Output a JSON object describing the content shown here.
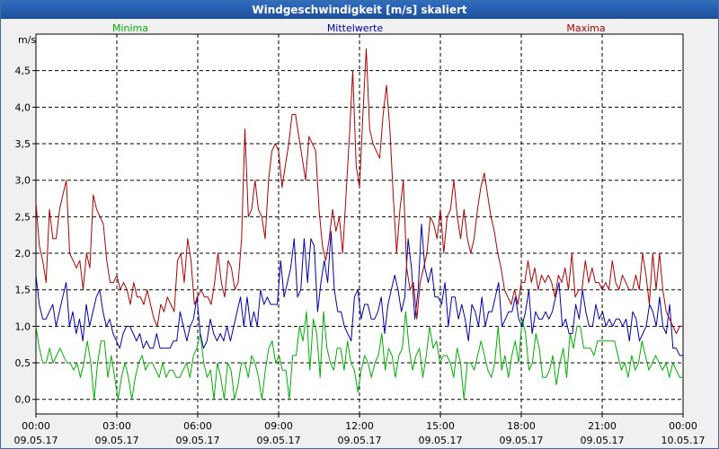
{
  "window": {
    "title": "Windgeschwindigkeit [m/s] skaliert"
  },
  "chart_data": {
    "type": "line",
    "title": "Windgeschwindigkeit [m/s] skaliert",
    "ylabel": "m/s",
    "ylim": [
      -0.2,
      5.0
    ],
    "xlim": [
      0,
      24
    ],
    "grid": true,
    "y_ticks": [
      {
        "value": 0.0,
        "label": "0,0"
      },
      {
        "value": 0.5,
        "label": "0,5"
      },
      {
        "value": 1.0,
        "label": "1,0"
      },
      {
        "value": 1.5,
        "label": "1,5"
      },
      {
        "value": 2.0,
        "label": "2,0"
      },
      {
        "value": 2.5,
        "label": "2,5"
      },
      {
        "value": 3.0,
        "label": "3,0"
      },
      {
        "value": 3.5,
        "label": "3,5"
      },
      {
        "value": 4.0,
        "label": "4,0"
      },
      {
        "value": 4.5,
        "label": "4,5"
      }
    ],
    "x_ticks": [
      {
        "value": 0,
        "time": "00:00",
        "date": "09.05.17"
      },
      {
        "value": 3,
        "time": "03:00",
        "date": "09.05.17"
      },
      {
        "value": 6,
        "time": "06:00",
        "date": "09.05.17"
      },
      {
        "value": 9,
        "time": "09:00",
        "date": "09.05.17"
      },
      {
        "value": 12,
        "time": "12:00",
        "date": "09.05.17"
      },
      {
        "value": 15,
        "time": "15:00",
        "date": "09.05.17"
      },
      {
        "value": 18,
        "time": "18:00",
        "date": "09.05.17"
      },
      {
        "value": 21,
        "time": "21:00",
        "date": "09.05.17"
      },
      {
        "value": 24,
        "time": "00:00",
        "date": "10.05.17"
      }
    ],
    "series": [
      {
        "name": "Minima",
        "color": "#00b000",
        "values": [
          1.0,
          0.7,
          0.5,
          0.5,
          0.7,
          0.5,
          0.6,
          0.7,
          0.6,
          0.5,
          0.5,
          0.4,
          0.5,
          0.3,
          0.5,
          0.8,
          0.5,
          0.0,
          0.5,
          0.8,
          0.8,
          0.3,
          0.6,
          0.3,
          0.0,
          0.3,
          0.5,
          0.3,
          0.0,
          0.3,
          0.5,
          0.6,
          0.4,
          0.5,
          0.5,
          0.4,
          0.3,
          0.5,
          0.3,
          0.4,
          0.4,
          0.3,
          0.3,
          0.4,
          0.5,
          0.3,
          0.6,
          0.7,
          0.9,
          0.5,
          0.3,
          0.4,
          0.0,
          0.5,
          0.3,
          0.0,
          0.5,
          0.4,
          0.0,
          0.2,
          0.5,
          0.5,
          0.3,
          0.6,
          0.5,
          0.3,
          0.0,
          0.4,
          0.7,
          0.8,
          0.5,
          0.6,
          0.4,
          0.4,
          0.0,
          0.6,
          0.6,
          1.0,
          0.8,
          1.2,
          0.4,
          1.1,
          0.9,
          0.3,
          1.2,
          0.7,
          0.5,
          0.4,
          0.7,
          0.7,
          0.4,
          0.8,
          0.5,
          0.4,
          0.1,
          0.4,
          0.6,
          0.5,
          0.3,
          0.5,
          0.6,
          0.9,
          0.4,
          0.7,
          0.6,
          0.3,
          0.6,
          0.7,
          1.2,
          0.7,
          0.4,
          0.6,
          0.7,
          0.3,
          0.6,
          1.0,
          0.7,
          0.8,
          0.5,
          0.6,
          0.6,
          0.5,
          0.3,
          0.7,
          0.5,
          0.0,
          0.5,
          0.5,
          0.4,
          0.6,
          0.8,
          0.6,
          0.4,
          0.3,
          0.5,
          1.0,
          0.4,
          0.6,
          0.3,
          0.6,
          0.8,
          0.5,
          1.1,
          0.9,
          0.4,
          0.5,
          0.9,
          0.7,
          0.3,
          0.3,
          0.4,
          0.6,
          0.2,
          0.5,
          0.7,
          0.3,
          0.9,
          0.7,
          1.0,
          1.0,
          0.7,
          0.7,
          0.7,
          0.6,
          0.8,
          0.8,
          0.8,
          0.8,
          0.8,
          0.8,
          0.6,
          0.4,
          0.5,
          0.3,
          0.6,
          0.4,
          0.5,
          0.8,
          0.6,
          0.4,
          0.5,
          0.6,
          0.5,
          0.4,
          0.5,
          0.3,
          0.5,
          0.4,
          0.3,
          0.3
        ]
      },
      {
        "name": "Mittelwerte",
        "color": "#0000b0",
        "values": [
          1.7,
          1.3,
          1.1,
          1.1,
          1.2,
          1.3,
          1.0,
          1.2,
          1.4,
          1.6,
          1.0,
          1.2,
          0.9,
          1.1,
          0.8,
          1.3,
          1.0,
          1.2,
          1.4,
          1.5,
          1.2,
          1.0,
          1.1,
          0.9,
          0.8,
          0.7,
          0.9,
          1.0,
          1.0,
          0.9,
          0.8,
          0.9,
          0.7,
          0.8,
          0.7,
          0.7,
          0.9,
          0.7,
          0.7,
          0.7,
          0.7,
          0.8,
          0.8,
          1.2,
          1.0,
          0.8,
          1.0,
          1.1,
          1.4,
          0.9,
          0.7,
          0.8,
          1.1,
          0.9,
          0.8,
          0.9,
          0.8,
          1.0,
          0.8,
          1.0,
          1.2,
          1.4,
          1.0,
          1.4,
          1.0,
          1.2,
          1.0,
          1.5,
          1.3,
          1.4,
          1.3,
          1.3,
          1.3,
          1.9,
          1.4,
          1.6,
          1.8,
          2.2,
          1.4,
          1.5,
          2.2,
          1.6,
          2.2,
          2.1,
          1.2,
          1.6,
          1.9,
          1.6,
          2.3,
          1.5,
          1.2,
          1.2,
          1.0,
          0.9,
          0.8,
          1.4,
          1.5,
          1.1,
          1.3,
          1.3,
          1.1,
          1.1,
          1.2,
          1.4,
          0.9,
          1.3,
          1.5,
          1.7,
          1.5,
          1.2,
          1.4,
          2.2,
          1.8,
          1.1,
          1.5,
          2.4,
          1.8,
          1.6,
          1.8,
          1.4,
          1.4,
          1.3,
          1.6,
          1.0,
          1.4,
          1.4,
          1.1,
          1.3,
          1.1,
          0.8,
          1.3,
          1.2,
          1.0,
          1.4,
          1.0,
          1.2,
          1.2,
          1.4,
          1.6,
          1.0,
          1.1,
          1.2,
          1.2,
          1.4,
          1.1,
          1.0,
          1.2,
          1.5,
          0.9,
          1.2,
          1.1,
          1.1,
          1.2,
          1.1,
          1.2,
          1.4,
          1.6,
          1.0,
          1.1,
          0.9,
          0.9,
          1.3,
          1.1,
          1.5,
          1.2,
          1.0,
          1.0,
          1.3,
          1.1,
          1.2,
          1.0,
          1.1,
          1.0,
          1.1,
          1.1,
          1.0,
          1.1,
          0.8,
          1.2,
          1.1,
          0.8,
          0.9,
          1.0,
          1.3,
          1.2,
          1.0,
          1.4,
          1.0,
          0.9,
          1.3,
          0.7,
          0.7,
          0.6,
          0.6
        ]
      },
      {
        "name": "Maxima",
        "color": "#b00000",
        "values": [
          2.7,
          2.1,
          1.9,
          1.6,
          2.6,
          2.2,
          2.2,
          2.6,
          2.8,
          3.0,
          2.0,
          1.9,
          1.8,
          1.9,
          1.5,
          2.0,
          1.8,
          2.8,
          2.6,
          2.5,
          2.4,
          1.9,
          1.6,
          1.6,
          1.7,
          1.5,
          1.6,
          1.5,
          1.3,
          1.6,
          1.4,
          1.4,
          1.3,
          1.5,
          1.3,
          1.1,
          1.0,
          1.3,
          1.2,
          1.4,
          1.3,
          1.2,
          1.9,
          2.0,
          1.6,
          2.2,
          1.9,
          1.3,
          1.4,
          1.5,
          1.4,
          1.4,
          1.3,
          1.6,
          2.0,
          1.6,
          1.4,
          1.9,
          1.8,
          1.5,
          1.6,
          2.2,
          3.7,
          2.5,
          2.6,
          3.0,
          2.6,
          2.5,
          2.2,
          3.0,
          3.4,
          3.5,
          3.4,
          2.9,
          3.2,
          3.5,
          3.9,
          3.9,
          3.6,
          3.3,
          3.0,
          3.6,
          3.5,
          3.4,
          2.6,
          2.1,
          1.9,
          2.2,
          2.6,
          2.3,
          2.5,
          2.0,
          2.8,
          3.6,
          4.5,
          3.2,
          2.9,
          3.9,
          4.8,
          3.7,
          3.5,
          3.4,
          3.3,
          3.9,
          4.3,
          3.7,
          2.8,
          2.0,
          2.6,
          3.0,
          1.8,
          1.5,
          1.6,
          1.1,
          1.6,
          1.8,
          2.0,
          2.5,
          2.4,
          2.2,
          2.6,
          2.0,
          2.5,
          2.6,
          3.0,
          2.5,
          2.2,
          2.6,
          2.2,
          2.0,
          2.2,
          2.6,
          2.9,
          3.1,
          2.8,
          2.5,
          2.3,
          2.0,
          1.8,
          1.5,
          1.4,
          1.3,
          1.5,
          1.3,
          1.6,
          1.6,
          1.9,
          1.6,
          1.8,
          1.5,
          1.7,
          1.6,
          1.7,
          1.6,
          1.4,
          1.7,
          1.6,
          1.8,
          1.5,
          2.0,
          1.4,
          1.5,
          1.5,
          1.9,
          1.6,
          1.8,
          1.6,
          1.6,
          1.5,
          1.6,
          1.5,
          1.9,
          1.6,
          1.5,
          1.7,
          1.6,
          1.5,
          1.5,
          1.7,
          1.5,
          2.0,
          1.7,
          1.3,
          2.0,
          1.5,
          2.0,
          1.5,
          1.2,
          1.1,
          1.0,
          0.9,
          1.0,
          1.0
        ]
      }
    ]
  }
}
